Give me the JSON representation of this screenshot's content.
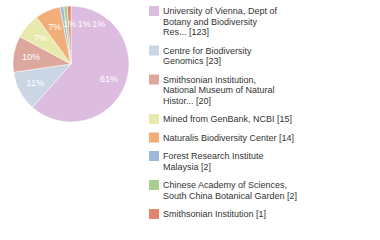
{
  "chart_data": {
    "type": "pie",
    "labels": [
      [
        "University of Vienna, Dept of",
        "Botany and Biodiversity",
        "Res... [123]"
      ],
      [
        "Centre for Biodiversity",
        "Genomics [23]"
      ],
      [
        "Smithsonian Institution,",
        "National Museum of Natural",
        "Histor... [20]"
      ],
      [
        "Mined from GenBank, NCBI [15]"
      ],
      [
        "Naturalis Biodiversity Center [14]"
      ],
      [
        "Forest Research Institute",
        "Malaysia [2]"
      ],
      [
        "Chinese Academy of Sciences,",
        "South China Botanical Garden [2]"
      ],
      [
        "Smithsonian Institution [1]"
      ]
    ],
    "values": [
      61,
      11,
      10,
      7,
      7,
      1,
      1,
      1
    ],
    "value_labels": [
      "61%",
      "11%",
      "10%",
      "7%",
      "7%",
      "1%",
      "1%",
      "1%"
    ],
    "colors": [
      "#dcbde0",
      "#cbd6e4",
      "#dca79c",
      "#e7eaab",
      "#f1ae79",
      "#9cb9dc",
      "#a9cf8e",
      "#e3846d"
    ],
    "data_labels": true,
    "legend": "right"
  }
}
